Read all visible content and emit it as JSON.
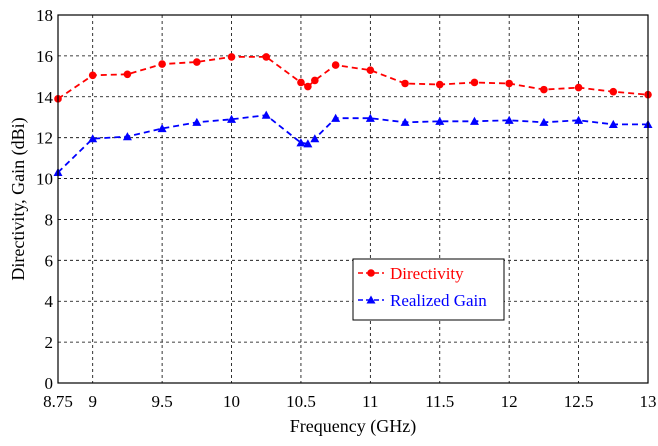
{
  "chart_data": {
    "type": "line",
    "xlabel": "Frequency (GHz)",
    "ylabel": "Directivity, Gain (dBi)",
    "xlim": [
      8.75,
      13
    ],
    "ylim": [
      0,
      18
    ],
    "x_ticks": [
      "8.75",
      "9",
      "9.5",
      "10",
      "10.5",
      "11",
      "11.5",
      "12",
      "12.5",
      "13"
    ],
    "y_ticks": [
      "0",
      "2",
      "4",
      "6",
      "8",
      "10",
      "12",
      "14",
      "16",
      "18"
    ],
    "grid": true,
    "legend_position": "lower-center",
    "series": [
      {
        "name": "Directivity",
        "color": "#ff0000",
        "marker": "circle",
        "line_style": "dashed",
        "x": [
          8.75,
          9,
          9.25,
          9.5,
          9.75,
          10,
          10.25,
          10.5,
          10.55,
          10.6,
          10.75,
          11,
          11.25,
          11.5,
          11.75,
          12,
          12.25,
          12.5,
          12.75,
          13
        ],
        "y": [
          13.9,
          15.05,
          15.1,
          15.6,
          15.7,
          15.95,
          15.95,
          14.7,
          14.5,
          14.8,
          15.55,
          15.3,
          14.65,
          14.6,
          14.7,
          14.65,
          14.35,
          14.45,
          14.25,
          14.1
        ]
      },
      {
        "name": "Realized Gain",
        "color": "#0000ff",
        "marker": "triangle",
        "line_style": "dashed",
        "x": [
          8.75,
          9,
          9.25,
          9.5,
          9.75,
          10,
          10.25,
          10.5,
          10.55,
          10.6,
          10.75,
          11,
          11.25,
          11.5,
          11.75,
          12,
          12.25,
          12.5,
          12.75,
          13
        ],
        "y": [
          10.3,
          11.95,
          12.05,
          12.45,
          12.75,
          12.9,
          13.1,
          11.75,
          11.7,
          11.95,
          12.95,
          12.95,
          12.75,
          12.8,
          12.8,
          12.85,
          12.75,
          12.85,
          12.65,
          12.65
        ]
      }
    ]
  }
}
